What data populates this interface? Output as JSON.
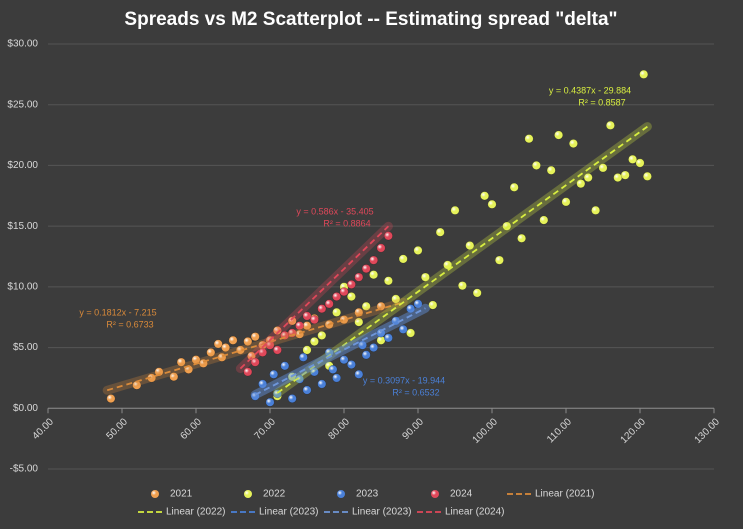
{
  "chart_data": {
    "type": "scatter",
    "title": "Spreads vs M2 Scatterplot -- Estimating spread \"delta\"",
    "xlim": [
      40,
      130
    ],
    "xticks": [
      {
        "value": 40,
        "label": "40.00"
      },
      {
        "value": 50,
        "label": "50.00"
      },
      {
        "value": 60,
        "label": "60.00"
      },
      {
        "value": 70,
        "label": "70.00"
      },
      {
        "value": 80,
        "label": "80.00"
      },
      {
        "value": 90,
        "label": "90.00"
      },
      {
        "value": 100,
        "label": "100.00"
      },
      {
        "value": 110,
        "label": "110.00"
      },
      {
        "value": 120,
        "label": "120.00"
      },
      {
        "value": 130,
        "label": "130.00"
      }
    ],
    "ylim": [
      -5,
      30
    ],
    "yticks": [
      {
        "value": -5,
        "label": "-$5.00"
      },
      {
        "value": 0,
        "label": "$0.00"
      },
      {
        "value": 5,
        "label": "$5.00"
      },
      {
        "value": 10,
        "label": "$10.00"
      },
      {
        "value": 15,
        "label": "$15.00"
      },
      {
        "value": 20,
        "label": "$20.00"
      },
      {
        "value": 25,
        "label": "$25.00"
      },
      {
        "value": 30,
        "label": "$30.00"
      }
    ],
    "grid": true,
    "series": [
      {
        "name": "2021",
        "color": "#f0a050",
        "x": [
          48.5,
          52,
          54,
          55,
          57,
          58,
          59,
          60,
          61,
          62,
          63,
          63.5,
          64,
          65,
          66,
          67,
          67.5,
          68,
          69,
          70,
          71,
          72,
          73,
          74,
          75,
          76,
          78,
          80,
          82,
          85
        ],
        "values": [
          0.8,
          1.9,
          2.5,
          3.0,
          2.6,
          3.8,
          3.2,
          4.0,
          3.7,
          4.6,
          5.3,
          4.2,
          5.0,
          5.6,
          4.8,
          5.5,
          4.3,
          5.9,
          5.2,
          5.6,
          6.4,
          6.0,
          7.2,
          6.1,
          6.8,
          7.4,
          6.9,
          7.3,
          7.9,
          8.4
        ]
      },
      {
        "name": "2022",
        "color": "#e6f25a",
        "x": [
          71,
          73,
          75,
          76,
          77,
          78,
          79,
          80,
          81,
          82,
          83,
          84,
          85,
          86,
          87,
          88,
          89,
          90,
          91,
          92,
          93,
          94,
          95,
          96,
          97,
          98,
          99,
          100,
          101,
          102,
          103,
          104,
          105,
          106,
          107,
          108,
          109,
          110,
          111,
          112,
          113,
          114,
          115,
          116,
          117,
          118,
          119,
          120,
          120.5,
          121
        ],
        "values": [
          1.0,
          2.6,
          4.8,
          5.5,
          6.0,
          3.5,
          7.9,
          10.0,
          9.2,
          7.1,
          8.4,
          11.0,
          5.6,
          10.5,
          9.0,
          12.3,
          6.2,
          13.0,
          10.8,
          8.5,
          14.5,
          11.8,
          16.3,
          10.1,
          13.4,
          9.5,
          17.5,
          16.8,
          12.2,
          15.0,
          18.2,
          14.0,
          22.2,
          20.0,
          15.5,
          19.6,
          22.5,
          17.0,
          21.8,
          18.5,
          19.0,
          16.3,
          19.8,
          23.3,
          19.0,
          19.2,
          20.5,
          20.2,
          27.5,
          19.1
        ]
      },
      {
        "name": "2023",
        "color": "#4a80d8",
        "x": [
          68,
          69,
          70,
          70.5,
          71,
          72,
          73,
          74,
          74.5,
          75,
          76,
          77,
          78,
          78.5,
          79,
          80,
          81,
          82,
          82.5,
          83,
          84,
          85,
          86,
          87,
          88,
          89,
          90
        ],
        "values": [
          1.0,
          2.0,
          0.5,
          2.8,
          1.2,
          3.5,
          0.8,
          2.4,
          4.2,
          1.5,
          3.0,
          2.0,
          4.6,
          3.2,
          2.5,
          4.0,
          3.6,
          2.8,
          5.2,
          4.4,
          5.0,
          6.2,
          5.8,
          7.2,
          6.5,
          8.2,
          8.6
        ]
      },
      {
        "name": "2024",
        "color": "#e0485a",
        "x": [
          67,
          68,
          69,
          70,
          71,
          72,
          73,
          74,
          75,
          76,
          77,
          78,
          79,
          80,
          81,
          82,
          83,
          84,
          85,
          86
        ],
        "values": [
          3.0,
          3.8,
          4.6,
          5.2,
          4.8,
          6.0,
          6.2,
          6.8,
          7.6,
          7.3,
          8.2,
          8.6,
          9.2,
          9.6,
          10.2,
          10.8,
          11.5,
          12.2,
          13.2,
          14.2
        ]
      }
    ],
    "trendlines": [
      {
        "name": "Linear (2021)",
        "color": "#d98a3a",
        "slope": 0.1812,
        "intercept": -7.215,
        "x_range": [
          48,
          88
        ],
        "equation": "y = 0.1812x - 7.215",
        "r2": "R² = 0.6733"
      },
      {
        "name": "Linear (2022)",
        "color": "#d8ee40",
        "slope": 0.4387,
        "intercept": -29.884,
        "x_range": [
          71,
          121
        ],
        "equation": "y = 0.4387x - 29.884",
        "r2": "R² = 0.8587"
      },
      {
        "name": "Linear (2023)",
        "color": "#4a80d8",
        "slope": 0.3097,
        "intercept": -19.944,
        "x_range": [
          68,
          91
        ],
        "equation": "y = 0.3097x - 19.944",
        "r2": "R² = 0.6532"
      },
      {
        "name": "Linear (2023)",
        "color": "#6f96d8",
        "slope": 0.3097,
        "intercept": -19.944,
        "x_range": [
          68,
          91
        ]
      },
      {
        "name": "Linear (2024)",
        "color": "#e0485a",
        "slope": 0.586,
        "intercept": -35.405,
        "x_range": [
          66,
          86
        ],
        "equation": "y = 0.586x - 35.405",
        "r2": "R² = 0.8864"
      }
    ]
  }
}
